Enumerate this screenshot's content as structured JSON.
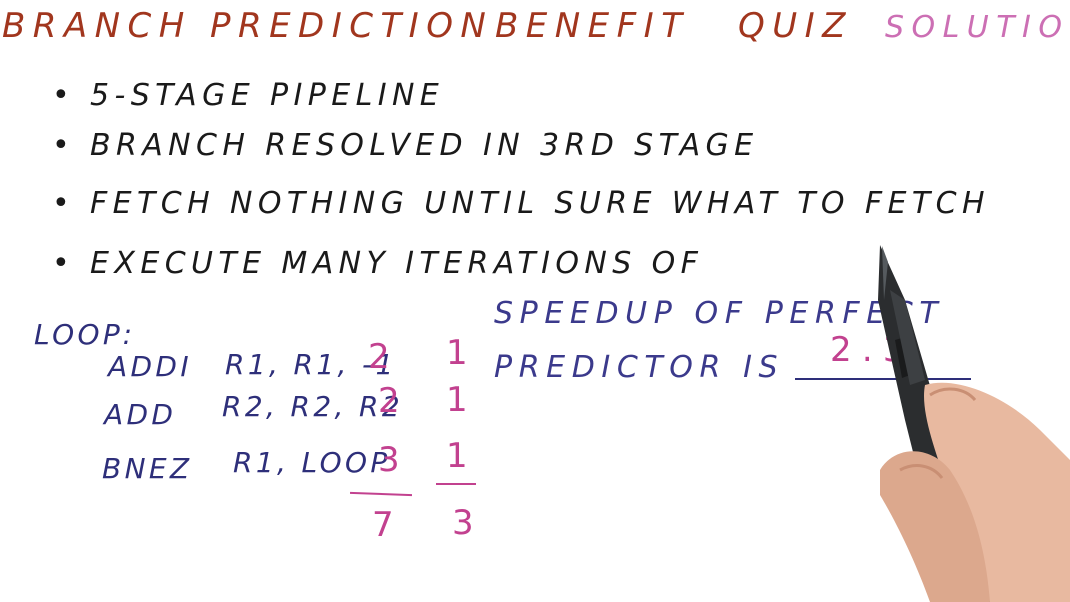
{
  "title": {
    "words": [
      "BRANCH",
      "PREDICTION",
      "BENEFIT",
      "QUIZ",
      "SOLUTION"
    ],
    "color_main": "#a1361e",
    "color_solution": "#cc6fb4"
  },
  "bullets": [
    "• 5-STAGE PIPELINE",
    "• BRANCH RESOLVED IN 3RD STAGE",
    "• FETCH NOTHING UNTIL SURE WHAT TO FETCH",
    "• EXECUTE MANY ITERATIONS OF"
  ],
  "code": {
    "label": "LOOP:",
    "rows": [
      {
        "op": "ADDI",
        "args": "R1, R1, -1",
        "cycles": "2",
        "ideal": "1"
      },
      {
        "op": "ADD",
        "args": "R2, R2, R2",
        "cycles": "2",
        "ideal": "1"
      },
      {
        "op": "BNEZ",
        "args": "R1, LOOP",
        "cycles": "3",
        "ideal": "1"
      }
    ],
    "total_cycles": "7",
    "total_ideal": "3"
  },
  "answer": {
    "line1": "SPEEDUP OF PERFECT",
    "line2": "PREDICTOR IS",
    "value": "2.3"
  },
  "colors": {
    "ink": "#1a1a1a",
    "blue": "#2e2f7a",
    "pink": "#c2418f"
  }
}
